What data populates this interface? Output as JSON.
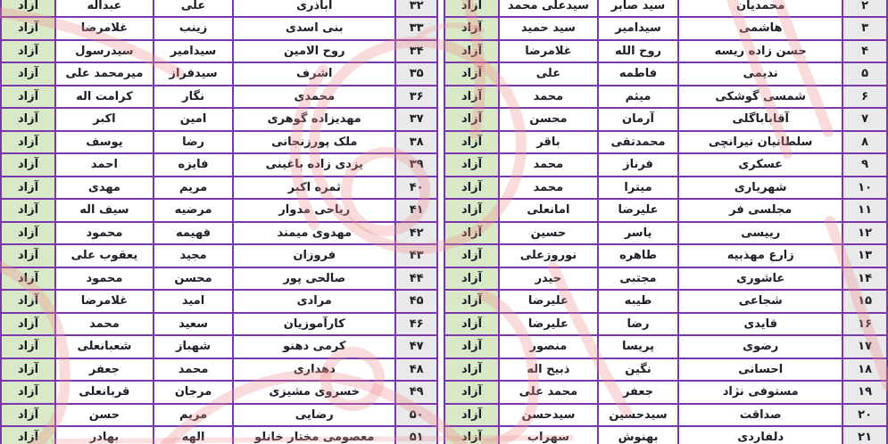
{
  "page": {
    "language": "fa",
    "status_label": "آزاد",
    "colors": {
      "grid_border": "#7a36ae",
      "status_cell_bg": "#d9e8c6",
      "number_cell_bg": "#e9e9e9",
      "text": "#1d1d28",
      "watermark_pink": "#ee8f8f"
    }
  },
  "tables": {
    "right": {
      "rows": [
        {
          "num": "۲",
          "surname": "محمدیان",
          "first_name": "سید صابر",
          "father": "سیدعلی محمد",
          "status": "آزاد"
        },
        {
          "num": "۳",
          "surname": "هاشمی",
          "first_name": "سیدامیر",
          "father": "سید حمید",
          "status": "آزاد"
        },
        {
          "num": "۴",
          "surname": "حسن زاده ریسه",
          "first_name": "روح الله",
          "father": "غلامرضا",
          "status": "آزاد"
        },
        {
          "num": "۵",
          "surname": "ندیمی",
          "first_name": "فاطمه",
          "father": "علی",
          "status": "آزاد"
        },
        {
          "num": "۶",
          "surname": "شمسی گوشکی",
          "first_name": "میثم",
          "father": "محمد",
          "status": "آزاد"
        },
        {
          "num": "۷",
          "surname": "آقاباباگلی",
          "first_name": "آرمان",
          "father": "محسن",
          "status": "آزاد"
        },
        {
          "num": "۸",
          "surname": "سلطانیان تیرانچی",
          "first_name": "محمدتقی",
          "father": "باقر",
          "status": "آزاد"
        },
        {
          "num": "۹",
          "surname": "عسکری",
          "first_name": "فرناز",
          "father": "محمد",
          "status": "آزاد"
        },
        {
          "num": "۱۰",
          "surname": "شهریاری",
          "first_name": "میترا",
          "father": "محمد",
          "status": "آزاد"
        },
        {
          "num": "۱۱",
          "surname": "مجلسی فر",
          "first_name": "علیرضا",
          "father": "امانعلی",
          "status": "آزاد"
        },
        {
          "num": "۱۲",
          "surname": "رییسی",
          "first_name": "یاسر",
          "father": "حسین",
          "status": "آزاد"
        },
        {
          "num": "۱۳",
          "surname": "زارع مهذبیه",
          "first_name": "طاهره",
          "father": "نوروزعلی",
          "status": "آزاد"
        },
        {
          "num": "۱۴",
          "surname": "عاشوری",
          "first_name": "مجتبی",
          "father": "حیدر",
          "status": "آزاد"
        },
        {
          "num": "۱۵",
          "surname": "شجاعی",
          "first_name": "طیبه",
          "father": "علیرضا",
          "status": "آزاد"
        },
        {
          "num": "۱۶",
          "surname": "قایدی",
          "first_name": "رضا",
          "father": "علیرضا",
          "status": "آزاد"
        },
        {
          "num": "۱۷",
          "surname": "رضوی",
          "first_name": "پریسا",
          "father": "منصور",
          "status": "آزاد"
        },
        {
          "num": "۱۸",
          "surname": "احسانی",
          "first_name": "نگین",
          "father": "ذبیح اله",
          "status": "آزاد"
        },
        {
          "num": "۱۹",
          "surname": "مستوفی نژاد",
          "first_name": "جعفر",
          "father": "محمد علی",
          "status": "آزاد"
        },
        {
          "num": "۲۰",
          "surname": "صداقت",
          "first_name": "سیدحسین",
          "father": "سیدحسن",
          "status": "آزاد"
        },
        {
          "num": "۲۱",
          "surname": "دلفاردی",
          "first_name": "بهنوش",
          "father": "سهراب",
          "status": "آزاد"
        }
      ]
    },
    "left": {
      "rows": [
        {
          "num": "۳۲",
          "surname": "اباذری",
          "first_name": "علی",
          "father": "عبداله",
          "status": "آزاد"
        },
        {
          "num": "۳۳",
          "surname": "بنی اسدی",
          "first_name": "زینب",
          "father": "غلامرضا",
          "status": "آزاد"
        },
        {
          "num": "۳۴",
          "surname": "روح الامین",
          "first_name": "سیدامیر",
          "father": "سیدرسول",
          "status": "آزاد"
        },
        {
          "num": "۳۵",
          "surname": "اشرف",
          "first_name": "سیدفراز",
          "father": "میرمحمد علی",
          "status": "آزاد"
        },
        {
          "num": "۳۶",
          "surname": "محمدی",
          "first_name": "نگار",
          "father": "کرامت اله",
          "status": "آزاد"
        },
        {
          "num": "۳۷",
          "surname": "مهدیزاده گوهری",
          "first_name": "امین",
          "father": "اکبر",
          "status": "آزاد"
        },
        {
          "num": "۳۸",
          "surname": "ملک پورزنجانی",
          "first_name": "رضا",
          "father": "یوسف",
          "status": "آزاد"
        },
        {
          "num": "۳۹",
          "surname": "یزدی زاده باغینی",
          "first_name": "فایزه",
          "father": "احمد",
          "status": "آزاد"
        },
        {
          "num": "۴۰",
          "surname": "ثمره اکبر",
          "first_name": "مریم",
          "father": "مهدی",
          "status": "آزاد"
        },
        {
          "num": "۴۱",
          "surname": "ریاحی مدوار",
          "first_name": "مرضیه",
          "father": "سیف اله",
          "status": "آزاد"
        },
        {
          "num": "۴۲",
          "surname": "مهدوی میمند",
          "first_name": "فهیمه",
          "father": "محمود",
          "status": "آزاد"
        },
        {
          "num": "۴۳",
          "surname": "فروزان",
          "first_name": "مجید",
          "father": "یعقوب علی",
          "status": "آزاد"
        },
        {
          "num": "۴۴",
          "surname": "صالحی پور",
          "first_name": "محسن",
          "father": "محمود",
          "status": "آزاد"
        },
        {
          "num": "۴۵",
          "surname": "مرادی",
          "first_name": "امید",
          "father": "غلامرضا",
          "status": "آزاد"
        },
        {
          "num": "۴۶",
          "surname": "کارآموزیان",
          "first_name": "سعید",
          "father": "محمد",
          "status": "آزاد"
        },
        {
          "num": "۴۷",
          "surname": "کرمی دهنو",
          "first_name": "شهباز",
          "father": "شعبانعلی",
          "status": "آزاد"
        },
        {
          "num": "۴۸",
          "surname": "دهداری",
          "first_name": "محمد",
          "father": "جعفر",
          "status": "آزاد"
        },
        {
          "num": "۴۹",
          "surname": "خسروی مشیزی",
          "first_name": "مرجان",
          "father": "قربانعلی",
          "status": "آزاد"
        },
        {
          "num": "۵۰",
          "surname": "رضایی",
          "first_name": "مریم",
          "father": "حسن",
          "status": "آزاد"
        },
        {
          "num": "۵۱",
          "surname": "معصومی مختار خانلو",
          "first_name": "الهه",
          "father": "بهادر",
          "status": "آزاد"
        }
      ]
    }
  }
}
